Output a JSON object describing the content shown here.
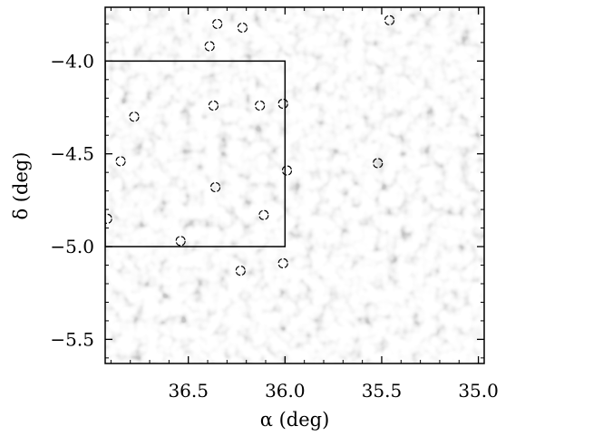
{
  "chart_data": {
    "type": "scatter",
    "title": "",
    "xlabel": "α (deg)",
    "ylabel": "δ (deg)",
    "xlim": [
      36.93,
      34.97
    ],
    "ylim": [
      -5.63,
      -3.71
    ],
    "x_reversed": true,
    "x_ticks": [
      36.5,
      36.0,
      35.5,
      35.0
    ],
    "x_tick_labels": [
      "36.5",
      "36.0",
      "35.5",
      "35.0"
    ],
    "y_ticks": [
      -4.0,
      -4.5,
      -5.0,
      -5.5
    ],
    "y_tick_labels": [
      "−4.0",
      "−4.5",
      "−5.0",
      "−5.5"
    ],
    "grid": false,
    "legend": "none",
    "background": "grayscale noise map",
    "region_box": {
      "ra": [
        36.93,
        36.0
      ],
      "dec": [
        -5.0,
        -4.0
      ]
    },
    "series": [
      {
        "marker": "open circle",
        "points": [
          {
            "x": 36.35,
            "y": -3.8
          },
          {
            "x": 36.22,
            "y": -3.82
          },
          {
            "x": 36.39,
            "y": -3.92
          },
          {
            "x": 35.46,
            "y": -3.78
          },
          {
            "x": 36.78,
            "y": -4.3
          },
          {
            "x": 36.37,
            "y": -4.24
          },
          {
            "x": 36.13,
            "y": -4.24
          },
          {
            "x": 36.01,
            "y": -4.23
          },
          {
            "x": 36.85,
            "y": -4.54
          },
          {
            "x": 36.36,
            "y": -4.68
          },
          {
            "x": 35.99,
            "y": -4.59
          },
          {
            "x": 35.52,
            "y": -4.55
          },
          {
            "x": 36.11,
            "y": -4.83
          },
          {
            "x": 36.54,
            "y": -4.97
          },
          {
            "x": 36.23,
            "y": -5.13
          },
          {
            "x": 36.01,
            "y": -5.09
          },
          {
            "x": 36.92,
            "y": -4.85
          }
        ]
      }
    ]
  }
}
